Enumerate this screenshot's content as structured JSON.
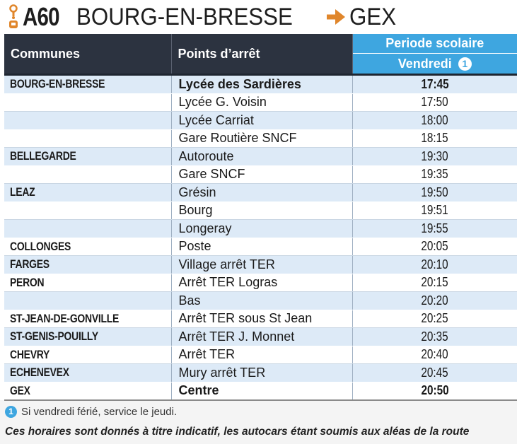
{
  "header": {
    "line_code": "A60",
    "from": "BOURG-EN-BRESSE",
    "to": "GEX",
    "accent_color": "#e0862b",
    "logo_icon": "bus-stop-icon",
    "arrow_icon": "arrow-right-icon"
  },
  "table": {
    "col_communes": "Communes",
    "col_stops": "Points d’arrêt",
    "col_period": "Periode scolaire",
    "col_day": "Vendredi",
    "col_day_note": "1",
    "header_dark_color": "#2c3340",
    "header_blue_color": "#3ea6e0",
    "rows": [
      {
        "commune": "BOURG-EN-BRESSE",
        "stop": "Lycée des Sardières",
        "time": "17:45"
      },
      {
        "commune": "",
        "stop": "Lycée G. Voisin",
        "time": "17:50"
      },
      {
        "commune": "",
        "stop": "Lycée Carriat",
        "time": "18:00"
      },
      {
        "commune": "",
        "stop": "Gare Routière SNCF",
        "time": "18:15"
      },
      {
        "commune": "BELLEGARDE",
        "stop": "Autoroute",
        "time": "19:30"
      },
      {
        "commune": "",
        "stop": "Gare SNCF",
        "time": "19:35"
      },
      {
        "commune": "LEAZ",
        "stop": "Grésin",
        "time": "19:50"
      },
      {
        "commune": "",
        "stop": "Bourg",
        "time": "19:51"
      },
      {
        "commune": "",
        "stop": "Longeray",
        "time": "19:55"
      },
      {
        "commune": "COLLONGES",
        "stop": "Poste",
        "time": "20:05"
      },
      {
        "commune": "FARGES",
        "stop": "Village arrêt TER",
        "time": "20:10"
      },
      {
        "commune": "PERON",
        "stop": "Arrêt TER Logras",
        "time": "20:15"
      },
      {
        "commune": "",
        "stop": "Bas",
        "time": "20:20"
      },
      {
        "commune": "ST-JEAN-DE-GONVILLE",
        "stop": "Arrêt TER sous St Jean",
        "time": "20:25"
      },
      {
        "commune": "ST-GENIS-POUILLY",
        "stop": "Arrêt TER J. Monnet",
        "time": "20:35"
      },
      {
        "commune": "CHEVRY",
        "stop": "Arrêt TER",
        "time": "20:40"
      },
      {
        "commune": "ECHENEVEX",
        "stop": "Mury arrêt TER",
        "time": "20:45"
      },
      {
        "commune": "GEX",
        "stop": "Centre",
        "time": "20:50"
      }
    ]
  },
  "footnote": {
    "marker": "1",
    "text": "Si vendredi férié, service le jeudi."
  },
  "disclaimer": "Ces horaires sont donnés à titre indicatif, les autocars étant soumis aux aléas de la route"
}
